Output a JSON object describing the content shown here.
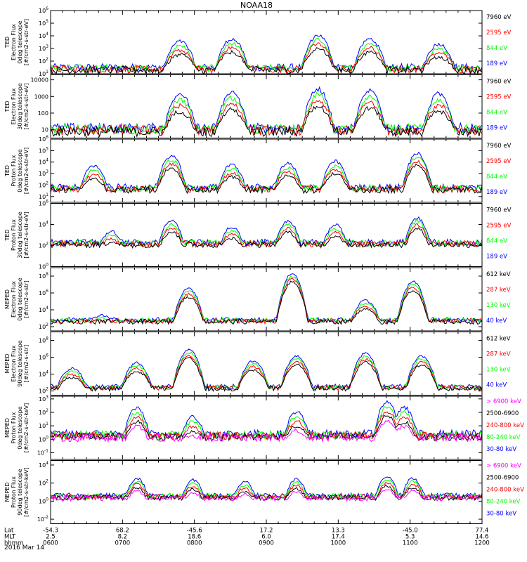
{
  "title": "NOAA18",
  "date_label": "2016 Mar 14",
  "colors": {
    "black": "#000000",
    "red": "#ff0000",
    "green": "#00ff00",
    "blue": "#0000ff",
    "magenta": "#ff00ff"
  },
  "chart_data": {
    "type": "line",
    "x_range": [
      "0600",
      "1200"
    ],
    "grid": false,
    "legend_placement": "right",
    "time_axis": {
      "rows": [
        {
          "label": "Lat",
          "values": [
            "-54.3",
            "68.2",
            "-45.6",
            "17.2",
            "13.3",
            "-45.0",
            "77.4"
          ]
        },
        {
          "label": "MLT",
          "values": [
            "2.5",
            "8.2",
            "18.6",
            "6.0",
            "17.4",
            "5.3",
            "14.6"
          ]
        },
        {
          "label": "hhmm",
          "values": [
            "0600",
            "0700",
            "0800",
            "0900",
            "1000",
            "1100",
            "1200"
          ]
        }
      ]
    },
    "panels": [
      {
        "name": "ted-electron-0deg",
        "ylabel": [
          "TED",
          "Electron Flux",
          "0deg telescope",
          "[#/cm2-s-str-eV]"
        ],
        "y_ticks": [
          "10^1",
          "10^2",
          "10^3",
          "10^4",
          "10^5",
          "10^6"
        ],
        "y_log_range": [
          1,
          6
        ],
        "legend": [
          {
            "label": "7960 eV",
            "color": "#000000"
          },
          {
            "label": "2595 eV",
            "color": "#ff0000"
          },
          {
            "label": "844 eV",
            "color": "#00ff00"
          },
          {
            "label": "189 eV",
            "color": "#0000ff"
          }
        ],
        "series_hint": {
          "base": 1.2,
          "enhancements": [
            [
              0.3,
              3.4
            ],
            [
              0.42,
              3.6
            ],
            [
              0.62,
              3.9
            ],
            [
              0.74,
              3.6
            ],
            [
              0.9,
              3.2
            ]
          ]
        }
      },
      {
        "name": "ted-electron-30deg",
        "ylabel": [
          "TED",
          "Electron Flux",
          "30deg telescope",
          "[#/cm2-s-str-eV]"
        ],
        "y_ticks": [
          "10",
          "100",
          "1000",
          "10000"
        ],
        "y_log_range": [
          0.5,
          4.3
        ],
        "legend": [
          {
            "label": "7960 eV",
            "color": "#000000"
          },
          {
            "label": "2595 eV",
            "color": "#ff0000"
          },
          {
            "label": "844 eV",
            "color": "#00ff00"
          },
          {
            "label": "189 eV",
            "color": "#0000ff"
          }
        ],
        "series_hint": {
          "base": 0.8,
          "enhancements": [
            [
              0.3,
              3.0
            ],
            [
              0.42,
              3.1
            ],
            [
              0.62,
              3.3
            ],
            [
              0.74,
              3.2
            ],
            [
              0.9,
              3.0
            ]
          ]
        }
      },
      {
        "name": "ted-proton-0deg",
        "ylabel": [
          "TED",
          "Proton Flux",
          "0deg telescope",
          "[#/cm2-s-str-eV]"
        ],
        "y_ticks": [
          "10^1",
          "10^2",
          "10^3",
          "10^4",
          "10^5",
          "10^6"
        ],
        "y_log_range": [
          0.5,
          6
        ],
        "legend": [
          {
            "label": "7960 eV",
            "color": "#000000"
          },
          {
            "label": "2595 eV",
            "color": "#ff0000"
          },
          {
            "label": "844 eV",
            "color": "#00ff00"
          },
          {
            "label": "189 eV",
            "color": "#0000ff"
          }
        ],
        "series_hint": {
          "base": 1.5,
          "enhancements": [
            [
              0.1,
              3.5
            ],
            [
              0.28,
              4.4
            ],
            [
              0.42,
              3.6
            ],
            [
              0.55,
              3.7
            ],
            [
              0.66,
              3.9
            ],
            [
              0.85,
              4.6
            ]
          ]
        }
      },
      {
        "name": "ted-proton-30deg",
        "ylabel": [
          "TED",
          "Proton Flux",
          "30deg telescope",
          "[#/cm2-s-str-eV]"
        ],
        "y_ticks": [
          "10^0",
          "10^2",
          "10^4",
          "10^6"
        ],
        "y_log_range": [
          0,
          6
        ],
        "legend": [
          {
            "label": "7960 eV",
            "color": "#000000"
          },
          {
            "label": "2595 eV",
            "color": "#ff0000"
          },
          {
            "label": "844 eV",
            "color": "#00ff00"
          },
          {
            "label": "189 eV",
            "color": "#0000ff"
          }
        ],
        "series_hint": {
          "base": 2.0,
          "enhancements": [
            [
              0.14,
              3.2
            ],
            [
              0.28,
              4.2
            ],
            [
              0.42,
              3.6
            ],
            [
              0.55,
              4.2
            ],
            [
              0.66,
              3.8
            ],
            [
              0.85,
              4.5
            ]
          ]
        }
      },
      {
        "name": "meped-electron-0deg",
        "ylabel": [
          "MEPED",
          "Electron Flux",
          "0deg telescope",
          "[#/cm2-s-str]"
        ],
        "y_ticks": [
          "10^2",
          "10^4",
          "10^6",
          "10^8"
        ],
        "y_log_range": [
          1.5,
          9
        ],
        "legend": [
          {
            "label": "612 keV",
            "color": "#000000"
          },
          {
            "label": "287 keV",
            "color": "#ff0000"
          },
          {
            "label": "130 keV",
            "color": "#00ff00"
          },
          {
            "label": "40 keV",
            "color": "#0000ff"
          }
        ],
        "series_hint": {
          "base": 2.5,
          "enhancements": [
            [
              0.12,
              3.2
            ],
            [
              0.32,
              6.4
            ],
            [
              0.56,
              8.2
            ],
            [
              0.73,
              5.0
            ],
            [
              0.84,
              7.2
            ]
          ]
        }
      },
      {
        "name": "meped-electron-90deg",
        "ylabel": [
          "MEPED",
          "Electron Flux",
          "90deg telescope",
          "[#/cm2-s-str]"
        ],
        "y_ticks": [
          "10^2",
          "10^4",
          "10^6",
          "10^8"
        ],
        "y_log_range": [
          1.5,
          9
        ],
        "legend": [
          {
            "label": "612 keV",
            "color": "#000000"
          },
          {
            "label": "287 keV",
            "color": "#ff0000"
          },
          {
            "label": "130 keV",
            "color": "#00ff00"
          },
          {
            "label": "40 keV",
            "color": "#0000ff"
          }
        ],
        "series_hint": {
          "base": 2.2,
          "enhancements": [
            [
              0.05,
              4.5
            ],
            [
              0.2,
              5.2
            ],
            [
              0.32,
              6.8
            ],
            [
              0.47,
              5.4
            ],
            [
              0.57,
              6.0
            ],
            [
              0.73,
              6.3
            ],
            [
              0.86,
              6.0
            ]
          ]
        }
      },
      {
        "name": "meped-proton-0deg",
        "ylabel": [
          "MEPED",
          "Proton Flux",
          "0deg telescope",
          "[#/cm2-s-str-keV]"
        ],
        "y_ticks": [
          "10^-1",
          "10^0",
          "10^1",
          "10^2",
          "10^3"
        ],
        "y_log_range": [
          -1.5,
          3.2
        ],
        "legend": [
          {
            "label": "> 6900 keV",
            "color": "#ff00ff"
          },
          {
            "label": "2500-6900",
            "color": "#000000"
          },
          {
            "label": "240-800 keV",
            "color": "#ff0000"
          },
          {
            "label": "80-240 keV",
            "color": "#00ff00"
          },
          {
            "label": "30-80 keV",
            "color": "#0000ff"
          }
        ],
        "series_hint": {
          "base": 0.1,
          "enhancements": [
            [
              0.2,
              2.2
            ],
            [
              0.33,
              1.5
            ],
            [
              0.57,
              1.9
            ],
            [
              0.78,
              2.6
            ],
            [
              0.82,
              2.2
            ]
          ]
        }
      },
      {
        "name": "meped-proton-90deg",
        "ylabel": [
          "MEPED",
          "Proton Flux",
          "90deg telescope",
          "[#/cm2-s-str-keV]"
        ],
        "y_ticks": [
          "10^-2",
          "10^0",
          "10^2",
          "10^4"
        ],
        "y_log_range": [
          -2.5,
          4.5
        ],
        "legend": [
          {
            "label": "> 6900 keV",
            "color": "#ff00ff"
          },
          {
            "label": "2500-6900",
            "color": "#000000"
          },
          {
            "label": "240-800 keV",
            "color": "#ff0000"
          },
          {
            "label": "80-240 keV",
            "color": "#00ff00"
          },
          {
            "label": "30-80 keV",
            "color": "#0000ff"
          }
        ],
        "series_hint": {
          "base": 0.3,
          "enhancements": [
            [
              0.2,
              2.4
            ],
            [
              0.33,
              2.2
            ],
            [
              0.45,
              2.0
            ],
            [
              0.57,
              2.3
            ],
            [
              0.78,
              2.6
            ],
            [
              0.84,
              2.4
            ]
          ]
        }
      }
    ]
  }
}
